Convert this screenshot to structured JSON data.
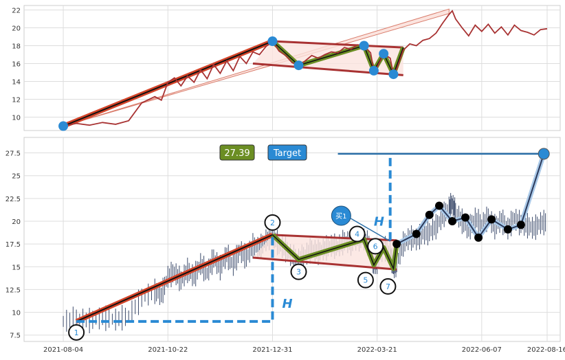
{
  "chart_data": [
    {
      "type": "line",
      "panel": "top",
      "ylim": [
        8.5,
        22.5
      ],
      "yticks": [
        10,
        12,
        14,
        16,
        18,
        20,
        22
      ],
      "price_series": {
        "color": "#a83232",
        "points": [
          [
            0.06,
            9.0
          ],
          [
            0.08,
            9.3
          ],
          [
            0.1,
            9.1
          ],
          [
            0.12,
            9.4
          ],
          [
            0.14,
            9.2
          ],
          [
            0.16,
            9.6
          ],
          [
            0.18,
            11.6
          ],
          [
            0.2,
            12.3
          ],
          [
            0.21,
            11.9
          ],
          [
            0.22,
            13.9
          ],
          [
            0.23,
            14.4
          ],
          [
            0.24,
            13.5
          ],
          [
            0.25,
            14.6
          ],
          [
            0.26,
            13.9
          ],
          [
            0.27,
            15.3
          ],
          [
            0.28,
            14.3
          ],
          [
            0.29,
            15.9
          ],
          [
            0.3,
            14.9
          ],
          [
            0.31,
            16.3
          ],
          [
            0.32,
            15.2
          ],
          [
            0.33,
            16.8
          ],
          [
            0.34,
            16.0
          ],
          [
            0.35,
            17.3
          ],
          [
            0.36,
            17.0
          ],
          [
            0.37,
            17.9
          ],
          [
            0.38,
            18.5
          ],
          [
            0.39,
            17.4
          ],
          [
            0.4,
            16.9
          ],
          [
            0.41,
            16.1
          ],
          [
            0.42,
            15.8
          ],
          [
            0.43,
            16.3
          ],
          [
            0.44,
            16.9
          ],
          [
            0.45,
            16.6
          ],
          [
            0.46,
            17.0
          ],
          [
            0.47,
            17.3
          ],
          [
            0.48,
            17.2
          ],
          [
            0.49,
            17.8
          ],
          [
            0.5,
            17.6
          ],
          [
            0.51,
            18.1
          ],
          [
            0.52,
            18.0
          ],
          [
            0.53,
            17.2
          ],
          [
            0.535,
            15.2
          ],
          [
            0.54,
            15.6
          ],
          [
            0.55,
            17.1
          ],
          [
            0.56,
            16.6
          ],
          [
            0.565,
            14.8
          ],
          [
            0.57,
            15.4
          ],
          [
            0.58,
            17.5
          ],
          [
            0.59,
            18.2
          ],
          [
            0.6,
            18.0
          ],
          [
            0.61,
            18.6
          ],
          [
            0.62,
            18.8
          ],
          [
            0.63,
            19.4
          ],
          [
            0.64,
            20.5
          ],
          [
            0.65,
            21.5
          ],
          [
            0.655,
            21.9
          ],
          [
            0.66,
            21.0
          ],
          [
            0.67,
            20.0
          ],
          [
            0.68,
            19.1
          ],
          [
            0.69,
            20.3
          ],
          [
            0.7,
            19.6
          ],
          [
            0.71,
            20.4
          ],
          [
            0.72,
            19.4
          ],
          [
            0.73,
            20.1
          ],
          [
            0.74,
            19.2
          ],
          [
            0.75,
            20.3
          ],
          [
            0.76,
            19.7
          ],
          [
            0.77,
            19.5
          ],
          [
            0.78,
            19.2
          ],
          [
            0.79,
            19.8
          ],
          [
            0.8,
            19.9
          ]
        ]
      },
      "markers": [
        [
          0.06,
          9.0
        ],
        [
          0.38,
          18.5
        ],
        [
          0.42,
          15.8
        ],
        [
          0.52,
          18.0
        ],
        [
          0.535,
          15.2
        ],
        [
          0.55,
          17.1
        ],
        [
          0.565,
          14.8
        ]
      ],
      "marker_color": "#2a8ad4"
    },
    {
      "type": "line",
      "panel": "bottom",
      "ylim": [
        6.8,
        29.2
      ],
      "yticks": [
        7.5,
        10.0,
        12.5,
        15.0,
        17.5,
        20.0,
        22.5,
        25.0,
        27.5
      ],
      "xticks": [
        "2021-08-04",
        "2021-10-22",
        "2021-12-31",
        "2022-03-21",
        "2022-06-07",
        "2022-08-16"
      ],
      "pivots": [
        {
          "label": "1",
          "x": 0.08,
          "y": 9.0
        },
        {
          "label": "2",
          "x": 0.38,
          "y": 18.5
        },
        {
          "label": "3",
          "x": 0.42,
          "y": 15.8
        },
        {
          "label": "4",
          "x": 0.52,
          "y": 18.0
        },
        {
          "label": "5",
          "x": 0.535,
          "y": 15.2
        },
        {
          "label": "6",
          "x": 0.55,
          "y": 17.1
        },
        {
          "label": "7",
          "x": 0.565,
          "y": 14.8
        }
      ],
      "projection": [
        [
          0.57,
          17.5
        ],
        [
          0.6,
          18.6
        ],
        [
          0.62,
          20.7
        ],
        [
          0.635,
          21.7
        ],
        [
          0.655,
          20.0
        ],
        [
          0.675,
          20.4
        ],
        [
          0.695,
          18.2
        ],
        [
          0.715,
          20.2
        ],
        [
          0.74,
          19.1
        ],
        [
          0.76,
          19.6
        ],
        [
          0.795,
          27.4
        ]
      ],
      "target_value": "27.39",
      "target_label": "Target",
      "buy_label": "买1",
      "h_label": "H"
    }
  ]
}
